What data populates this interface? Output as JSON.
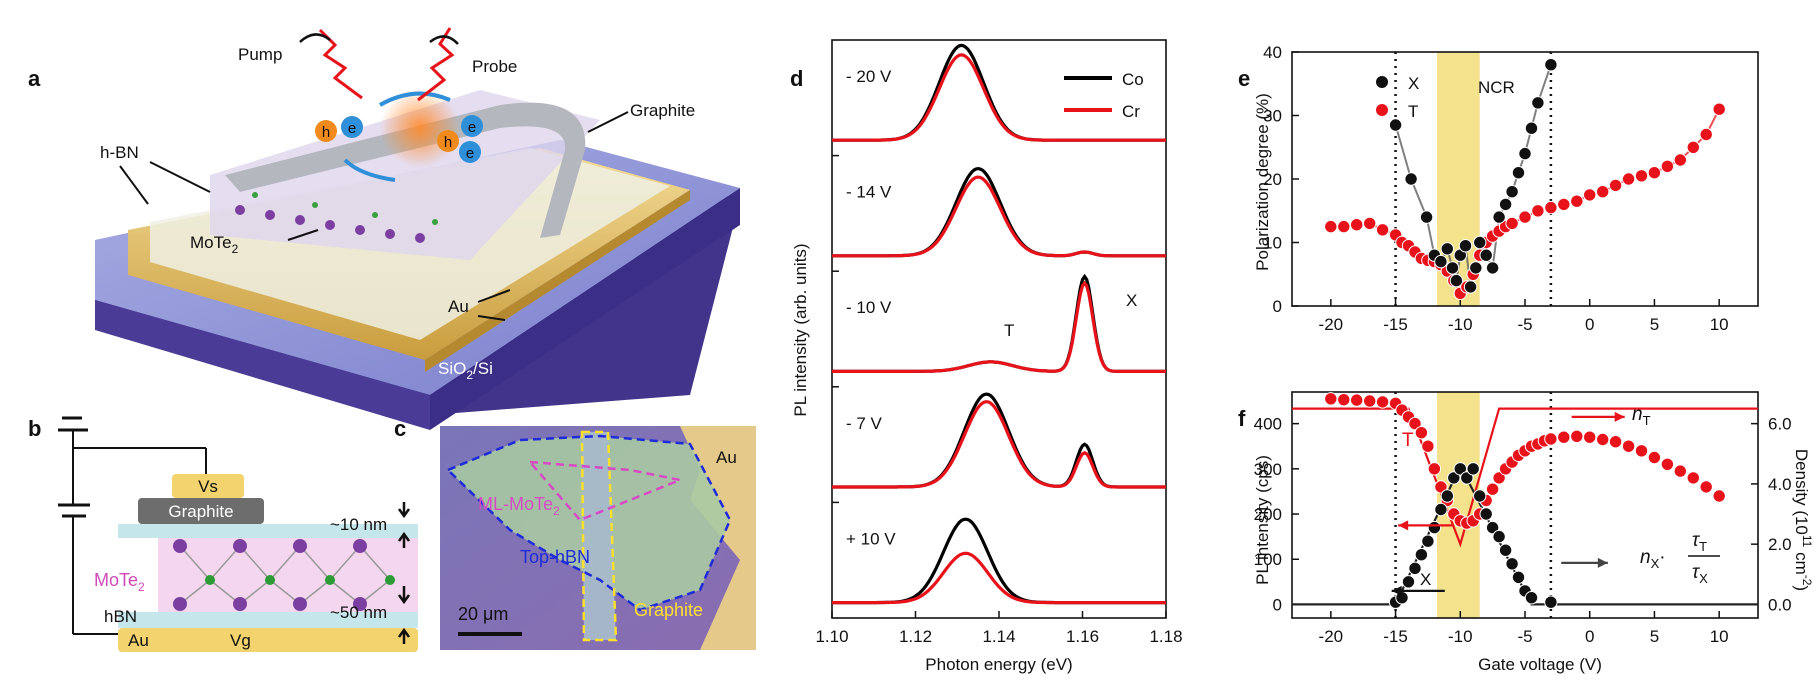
{
  "panels": {
    "a": {
      "label": "a",
      "pump": "Pump",
      "probe": "Probe",
      "graphite": "Graphite",
      "hbn": "h-BN",
      "mote2": "MoTe",
      "mote2_sub": "2",
      "au": "Au",
      "substrate": "SiO",
      "substrate_sub": "2",
      "substrate_tail": "/Si",
      "hole": "h",
      "electron": "e"
    },
    "b": {
      "label": "b",
      "vs": "Vs",
      "graphite": "Graphite",
      "mote2": "MoTe",
      "mote2_sub": "2",
      "hbn": "hBN",
      "au": "Au",
      "vg": "Vg",
      "top_thickness": "~10 nm",
      "bottom_thickness": "~50 nm"
    },
    "c": {
      "label": "c",
      "au": "Au",
      "ml": "ML-MoTe",
      "ml_sub": "2",
      "tophbn": "Top-hBN",
      "graphite": "Graphite",
      "scale": "20 μm"
    }
  },
  "colors": {
    "co": "#000000",
    "cr": "#e8121a",
    "ncr_band": "#f5e28c",
    "x_points": "#111111",
    "t_points": "#e8121a"
  },
  "chart_data": [
    {
      "id": "d",
      "label": "d",
      "type": "line",
      "xlabel": "Photon energy (eV)",
      "ylabel": "PL intensity (arb. units)",
      "xlim": [
        1.1,
        1.18
      ],
      "xticks": [
        "1.10",
        "1.12",
        "1.14",
        "1.16",
        "1.18"
      ],
      "legend": [
        "Co",
        "Cr"
      ],
      "peak_labels": {
        "t": "T",
        "x": "X"
      },
      "traces": [
        {
          "voltage": "- 20 V",
          "co": {
            "t_amp": 1.0,
            "t_pos": 1.131,
            "x_amp": 0.0
          },
          "cr": {
            "t_amp": 0.9,
            "t_pos": 1.131,
            "x_amp": 0.0
          }
        },
        {
          "voltage": "- 14 V",
          "co": {
            "t_amp": 0.92,
            "t_pos": 1.135,
            "x_amp": 0.04
          },
          "cr": {
            "t_amp": 0.83,
            "t_pos": 1.135,
            "x_amp": 0.04
          }
        },
        {
          "voltage": "- 10 V",
          "co": {
            "t_amp": 0.1,
            "t_pos": 1.138,
            "x_amp": 1.0
          },
          "cr": {
            "t_amp": 0.1,
            "t_pos": 1.138,
            "x_amp": 0.93
          }
        },
        {
          "voltage": "- 7 V",
          "co": {
            "t_amp": 0.98,
            "t_pos": 1.137,
            "x_amp": 0.45
          },
          "cr": {
            "t_amp": 0.9,
            "t_pos": 1.137,
            "x_amp": 0.36
          }
        },
        {
          "voltage": "+ 10 V",
          "co": {
            "t_amp": 0.88,
            "t_pos": 1.132,
            "x_amp": 0.0
          },
          "cr": {
            "t_amp": 0.52,
            "t_pos": 1.132,
            "x_amp": 0.0
          }
        }
      ]
    },
    {
      "id": "e",
      "label": "e",
      "type": "scatter",
      "xlabel": "",
      "ylabel": "Polarization degree (%)",
      "xlim": [
        -23,
        13
      ],
      "ylim": [
        0,
        40
      ],
      "xticks": [
        "-20",
        "-15",
        "-10",
        "-5",
        "0",
        "5",
        "10"
      ],
      "yticks": [
        "0",
        "10",
        "20",
        "30",
        "40"
      ],
      "ncr_band": [
        -11.8,
        -8.5
      ],
      "ncr_label": "NCR",
      "dotted_lines": [
        -15,
        -3
      ],
      "series": [
        {
          "name": "X",
          "points": [
            [
              -15,
              28.5
            ],
            [
              -13.8,
              20
            ],
            [
              -12.6,
              14
            ],
            [
              -12,
              8
            ],
            [
              -11.5,
              7
            ],
            [
              -11,
              9
            ],
            [
              -10.6,
              6
            ],
            [
              -10.3,
              4
            ],
            [
              -10,
              8
            ],
            [
              -9.6,
              9.5
            ],
            [
              -9.2,
              3
            ],
            [
              -8.8,
              6
            ],
            [
              -8.5,
              10
            ],
            [
              -8,
              8
            ],
            [
              -7.5,
              6
            ],
            [
              -7,
              14
            ],
            [
              -6.5,
              16
            ],
            [
              -6,
              18
            ],
            [
              -5.5,
              21
            ],
            [
              -5,
              24
            ],
            [
              -4.5,
              28
            ],
            [
              -4,
              32
            ],
            [
              -3,
              38
            ]
          ]
        },
        {
          "name": "T",
          "points": [
            [
              -20,
              12.5
            ],
            [
              -19,
              12.5
            ],
            [
              -18,
              12.8
            ],
            [
              -17,
              13
            ],
            [
              -16,
              12
            ],
            [
              -15,
              11.2
            ],
            [
              -14.5,
              10
            ],
            [
              -14,
              9.5
            ],
            [
              -13.5,
              8.5
            ],
            [
              -13,
              7.5
            ],
            [
              -12.5,
              7.2
            ],
            [
              -12,
              7
            ],
            [
              -11.5,
              6.5
            ],
            [
              -11,
              5.5
            ],
            [
              -10.5,
              4
            ],
            [
              -10,
              2
            ],
            [
              -9.5,
              3
            ],
            [
              -9,
              5
            ],
            [
              -8.5,
              8
            ],
            [
              -8,
              10
            ],
            [
              -7.5,
              11
            ],
            [
              -7,
              11.8
            ],
            [
              -6.5,
              12.5
            ],
            [
              -6,
              13
            ],
            [
              -5,
              14
            ],
            [
              -4,
              15
            ],
            [
              -3,
              15.5
            ],
            [
              -2,
              16
            ],
            [
              -1,
              16.5
            ],
            [
              0,
              17.5
            ],
            [
              1,
              18
            ],
            [
              2,
              19
            ],
            [
              3,
              20
            ],
            [
              4,
              20.5
            ],
            [
              5,
              21
            ],
            [
              6,
              22
            ],
            [
              7,
              23
            ],
            [
              8,
              25
            ],
            [
              9,
              27
            ],
            [
              10,
              31
            ]
          ]
        }
      ]
    },
    {
      "id": "f",
      "label": "f",
      "type": "scatter",
      "xlabel": "Gate voltage (V)",
      "ylabel": "PL intensity (cps)",
      "ylabel_right": "Density (10",
      "ylabel_right_sup": "11",
      "ylabel_right_unit": " cm",
      "ylabel_right_unit_sup": "-2",
      "ylabel_right_close": ")",
      "xlim": [
        -23,
        13
      ],
      "ylim": [
        -30,
        470
      ],
      "ylim_right": [
        -0.45,
        7.05
      ],
      "xticks": [
        "-20",
        "-15",
        "-10",
        "-5",
        "0",
        "5",
        "10"
      ],
      "yticks": [
        "0",
        "100",
        "200",
        "300",
        "400"
      ],
      "yticks_right": [
        "0.0",
        "2.0",
        "4.0",
        "6.0"
      ],
      "ncr_band": [
        -11.8,
        -8.5
      ],
      "dotted_lines": [
        -15,
        -3
      ],
      "series": [
        {
          "name": "T",
          "points": [
            [
              -20,
              455
            ],
            [
              -19,
              453
            ],
            [
              -18,
              452
            ],
            [
              -17,
              450
            ],
            [
              -16,
              448
            ],
            [
              -15,
              445
            ],
            [
              -14.5,
              430
            ],
            [
              -14,
              415
            ],
            [
              -13.5,
              400
            ],
            [
              -13,
              380
            ],
            [
              -12.5,
              350
            ],
            [
              -12,
              300
            ],
            [
              -11.5,
              260
            ],
            [
              -11,
              230
            ],
            [
              -10.5,
              200
            ],
            [
              -10,
              185
            ],
            [
              -9.5,
              180
            ],
            [
              -9,
              185
            ],
            [
              -8.5,
              200
            ],
            [
              -8,
              230
            ],
            [
              -7.5,
              255
            ],
            [
              -7,
              280
            ],
            [
              -6.5,
              300
            ],
            [
              -6,
              315
            ],
            [
              -5.5,
              330
            ],
            [
              -5,
              340
            ],
            [
              -4.5,
              350
            ],
            [
              -4,
              355
            ],
            [
              -3.5,
              362
            ],
            [
              -3,
              366
            ],
            [
              -2,
              370
            ],
            [
              -1,
              372
            ],
            [
              0,
              370
            ],
            [
              1,
              365
            ],
            [
              2,
              360
            ],
            [
              3,
              350
            ],
            [
              4,
              340
            ],
            [
              5,
              325
            ],
            [
              6,
              310
            ],
            [
              7,
              295
            ],
            [
              8,
              280
            ],
            [
              9,
              260
            ],
            [
              10,
              240
            ]
          ]
        },
        {
          "name": "X",
          "points": [
            [
              -15,
              5
            ],
            [
              -14.5,
              15
            ],
            [
              -14,
              50
            ],
            [
              -13.5,
              80
            ],
            [
              -13,
              110
            ],
            [
              -12.5,
              140
            ],
            [
              -12,
              170
            ],
            [
              -11.5,
              210
            ],
            [
              -11,
              240
            ],
            [
              -10.5,
              280
            ],
            [
              -10,
              300
            ],
            [
              -9.5,
              280
            ],
            [
              -9,
              300
            ],
            [
              -8.5,
              240
            ],
            [
              -8,
              200
            ],
            [
              -7.5,
              170
            ],
            [
              -7,
              150
            ],
            [
              -6.5,
              120
            ],
            [
              -6,
              90
            ],
            [
              -5.5,
              60
            ],
            [
              -5,
              30
            ],
            [
              -4.5,
              15
            ],
            [
              -3,
              5
            ]
          ]
        }
      ],
      "density_nt": [
        [
          -23,
          6.5
        ],
        [
          -14,
          6.5
        ],
        [
          -10,
          2.0
        ],
        [
          -7,
          6.5
        ],
        [
          13,
          6.5
        ]
      ],
      "density_nx": [
        [
          -23,
          0
        ],
        [
          -15,
          0
        ],
        [
          -10,
          4.6
        ],
        [
          -4.5,
          0
        ],
        [
          13,
          0
        ]
      ],
      "labels": {
        "t": "T",
        "x": "X",
        "nt": "n",
        "nt_sub": "T",
        "nx": "n",
        "nx_sub": "X",
        "tau": "τ",
        "tau_t_sub": "T",
        "tau_x_sub": "X",
        "dot": "·"
      }
    }
  ]
}
